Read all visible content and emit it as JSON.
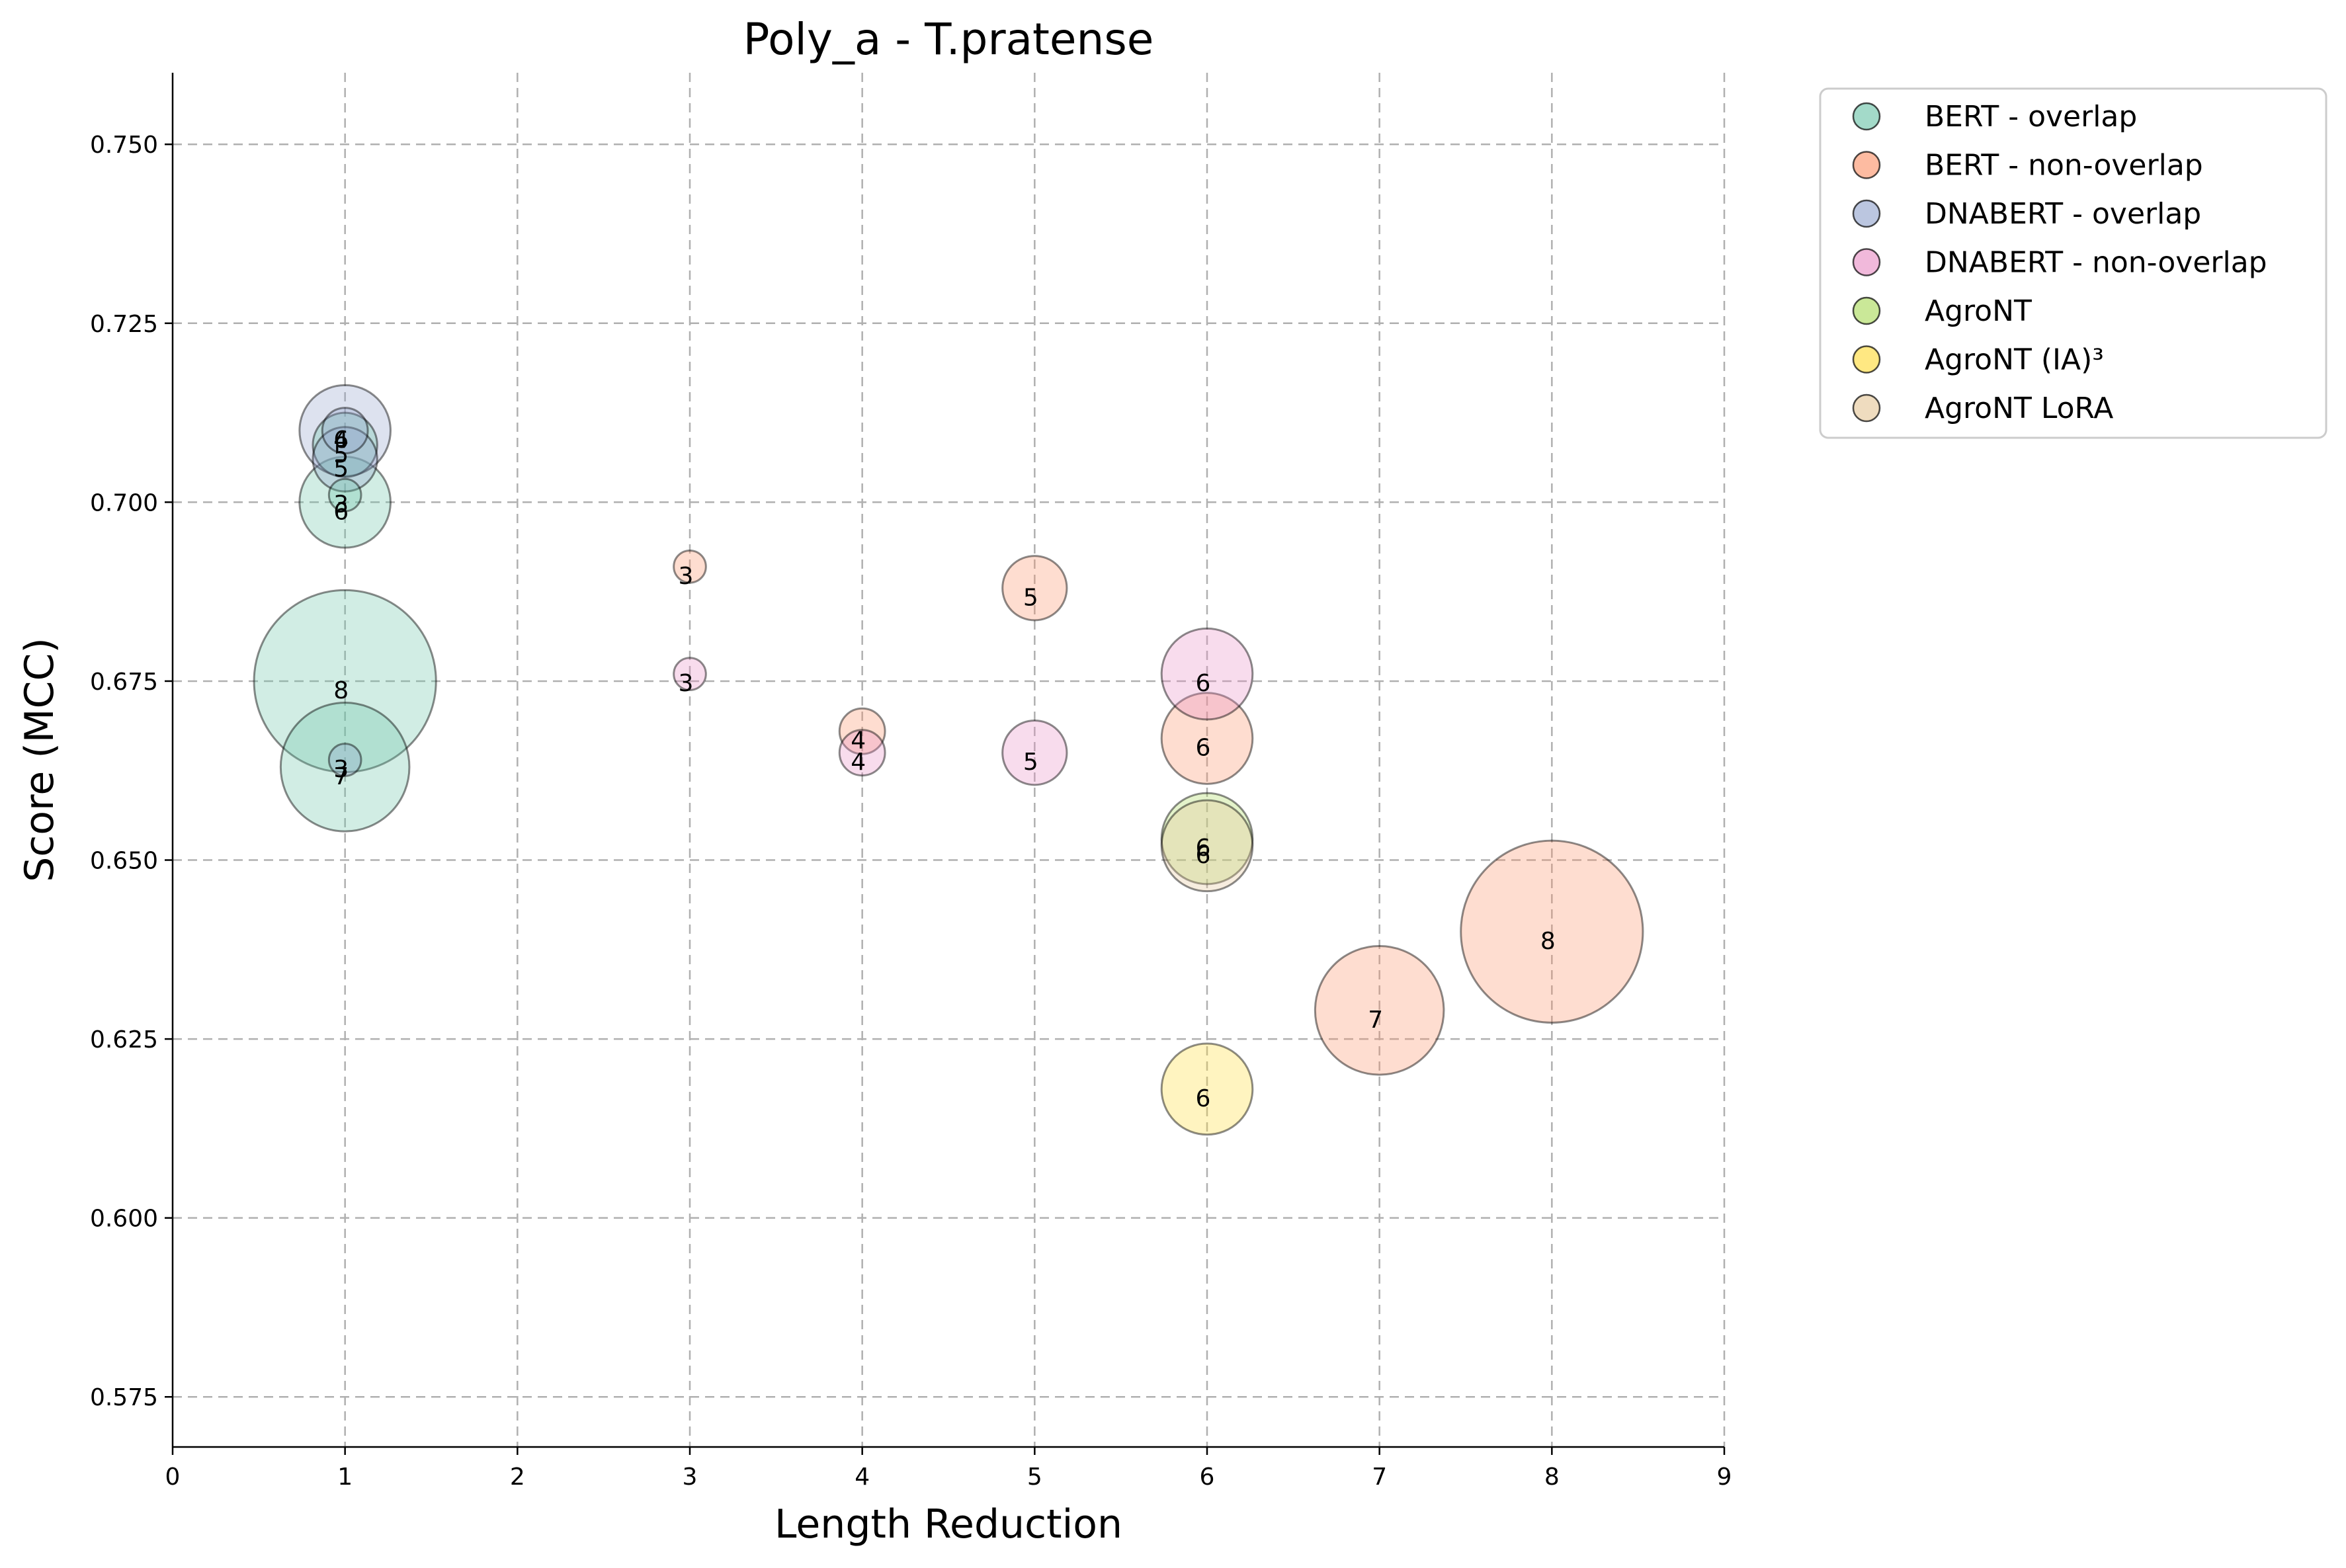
{
  "chart_data": {
    "type": "scatter",
    "subtype": "bubble",
    "title": "Poly_a - T.pratense",
    "xlabel": "Length Reduction",
    "ylabel": "Score (MCC)",
    "xlim": [
      0,
      9
    ],
    "ylim": [
      0.568,
      0.76
    ],
    "xticks": [
      "0",
      "1",
      "2",
      "3",
      "4",
      "5",
      "6",
      "7",
      "8",
      "9"
    ],
    "yticks": [
      "0.575",
      "0.600",
      "0.625",
      "0.650",
      "0.675",
      "0.700",
      "0.725",
      "0.750"
    ],
    "grid": true,
    "legend_position": "outside top-right",
    "series": [
      {
        "name": "BERT - overlap",
        "color": "#66c2a5",
        "points": [
          {
            "x": 1,
            "y": 0.701,
            "label": "3"
          },
          {
            "x": 1,
            "y": 0.7,
            "label": "6"
          },
          {
            "x": 1,
            "y": 0.675,
            "label": "8"
          },
          {
            "x": 1,
            "y": 0.663,
            "label": "7"
          },
          {
            "x": 1,
            "y": 0.708,
            "label": "5"
          }
        ]
      },
      {
        "name": "BERT - non-overlap",
        "color": "#fc8d62",
        "points": [
          {
            "x": 3,
            "y": 0.691,
            "label": "3"
          },
          {
            "x": 4,
            "y": 0.668,
            "label": "4"
          },
          {
            "x": 5,
            "y": 0.688,
            "label": "5"
          },
          {
            "x": 6,
            "y": 0.667,
            "label": "6"
          },
          {
            "x": 7,
            "y": 0.629,
            "label": "7"
          },
          {
            "x": 8,
            "y": 0.64,
            "label": "8"
          }
        ]
      },
      {
        "name": "DNABERT - overlap",
        "color": "#8da0cb",
        "points": [
          {
            "x": 1,
            "y": 0.71,
            "label": "6"
          },
          {
            "x": 1,
            "y": 0.71,
            "label": "4"
          },
          {
            "x": 1,
            "y": 0.706,
            "label": "5"
          },
          {
            "x": 1,
            "y": 0.664,
            "label": "3"
          }
        ]
      },
      {
        "name": "DNABERT - non-overlap",
        "color": "#e78ac3",
        "points": [
          {
            "x": 3,
            "y": 0.676,
            "label": "3"
          },
          {
            "x": 4,
            "y": 0.665,
            "label": "4"
          },
          {
            "x": 5,
            "y": 0.665,
            "label": "5"
          },
          {
            "x": 6,
            "y": 0.676,
            "label": "6"
          }
        ]
      },
      {
        "name": "AgroNT",
        "color": "#a6d854",
        "points": [
          {
            "x": 6,
            "y": 0.653,
            "label": "6"
          }
        ]
      },
      {
        "name": "AgroNT (IA)³",
        "color": "#ffd92f",
        "points": [
          {
            "x": 6,
            "y": 0.618,
            "label": "6"
          }
        ]
      },
      {
        "name": "AgroNT LoRA",
        "color": "#e5c494",
        "points": [
          {
            "x": 6,
            "y": 0.652,
            "label": "6"
          }
        ]
      }
    ]
  }
}
